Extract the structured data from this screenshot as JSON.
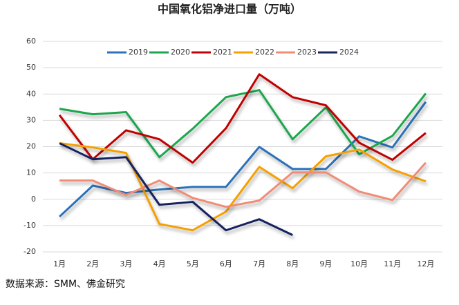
{
  "chart_data": {
    "type": "line",
    "title": "中国氧化铝净进口量（万吨）",
    "source": "数据来源：SMM、佛金研究",
    "categories": [
      "1月",
      "2月",
      "3月",
      "4月",
      "5月",
      "6月",
      "7月",
      "8月",
      "9月",
      "10月",
      "11月",
      "12月"
    ],
    "series": [
      {
        "name": "2019",
        "color": "#2b71b8",
        "values": [
          -6.6,
          5.2,
          2.4,
          3.7,
          4.7,
          4.7,
          19.9,
          11.5,
          11.5,
          23.9,
          19.7,
          37
        ]
      },
      {
        "name": "2020",
        "color": "#1aa64e",
        "values": [
          34.4,
          32.3,
          33.1,
          16,
          26.8,
          38.8,
          41.5,
          22.8,
          34.9,
          17.1,
          24.1,
          40.2
        ]
      },
      {
        "name": "2021",
        "color": "#c00000",
        "values": [
          32,
          15.2,
          26.2,
          22.8,
          13.9,
          27,
          47.5,
          38.8,
          35.7,
          21.5,
          15,
          25.2
        ]
      },
      {
        "name": "2022",
        "color": "#f5a000",
        "values": [
          21.3,
          19.7,
          17.6,
          -9.4,
          -11.8,
          -4.7,
          12.3,
          4.2,
          16.3,
          18.9,
          11.3,
          6.8
        ]
      },
      {
        "name": "2023",
        "color": "#f08c74",
        "values": [
          7.1,
          7.1,
          1.6,
          7.1,
          0.5,
          -2.9,
          -0.5,
          10.2,
          10.2,
          2.9,
          -0.3,
          13.9
        ]
      },
      {
        "name": "2024",
        "color": "#15245e",
        "values": [
          21.3,
          15.2,
          16,
          -2.1,
          -1,
          -11.8,
          -7.6,
          -13.6,
          null,
          null,
          null,
          null
        ]
      }
    ],
    "ylim": [
      -20,
      60
    ],
    "yticks": [
      -20,
      -10,
      0,
      10,
      20,
      30,
      40,
      50,
      60
    ],
    "grid": true,
    "legend": "top"
  }
}
